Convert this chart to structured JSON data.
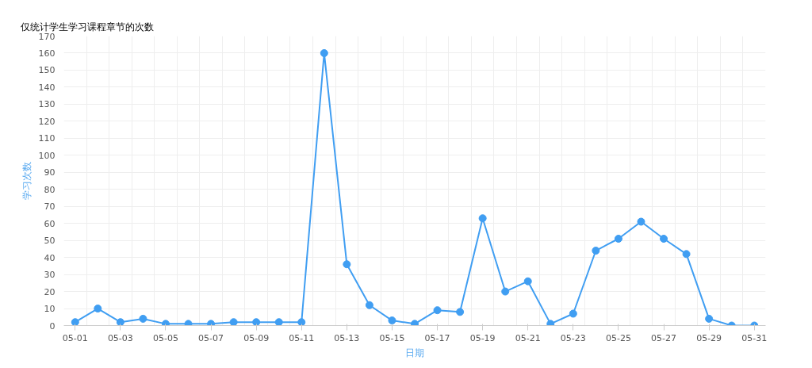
{
  "chart_data": {
    "type": "line",
    "title": "仅统计学生学习课程章节的次数",
    "xlabel": "日期",
    "ylabel": "学习次数",
    "categories": [
      "05-01",
      null,
      "05-03",
      null,
      "05-05",
      null,
      "05-07",
      null,
      "05-09",
      null,
      "05-11",
      null,
      "05-13",
      null,
      "05-15",
      null,
      "05-17",
      null,
      "05-19",
      null,
      "05-21",
      null,
      "05-23",
      null,
      "05-25",
      null,
      "05-27",
      null,
      "05-29",
      null,
      "05-31"
    ],
    "series": [
      {
        "color": "#409ef2",
        "values": [
          2,
          10,
          2,
          4,
          1,
          1,
          1,
          2,
          2,
          2,
          2,
          160,
          36,
          12,
          3,
          1,
          9,
          8,
          63,
          20,
          26,
          1,
          7,
          44,
          51,
          61,
          51,
          42,
          4,
          0,
          0
        ]
      }
    ],
    "ylim": [
      0,
      170
    ],
    "yticks": [
      0,
      10,
      20,
      30,
      40,
      50,
      60,
      70,
      80,
      90,
      100,
      110,
      120,
      130,
      140,
      150,
      160,
      170
    ],
    "grid": true,
    "marker": "circle",
    "line_style": "solid"
  }
}
